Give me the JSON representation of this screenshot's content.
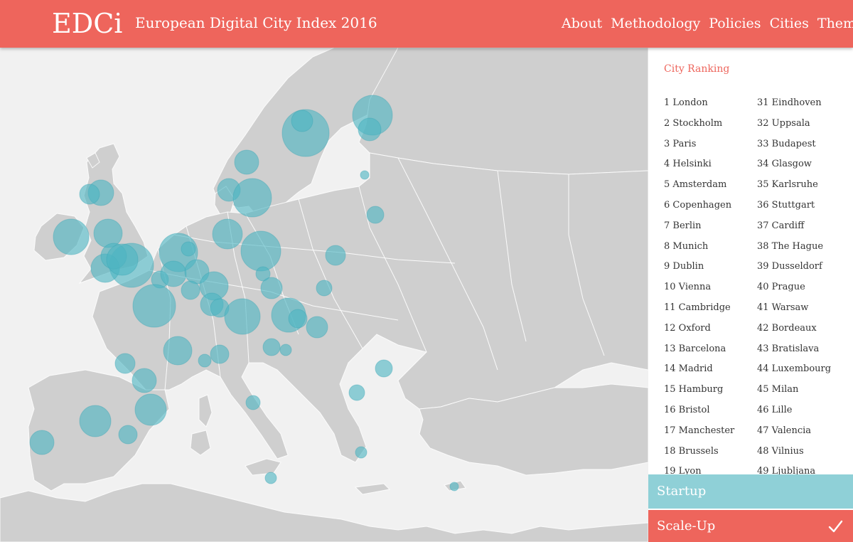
{
  "header": {
    "logo": "EDCi",
    "title": "European Digital City Index 2016",
    "nav": [
      "About",
      "Methodology",
      "Policies",
      "Cities",
      "Themes"
    ]
  },
  "panel": {
    "title": "City Ranking",
    "ranking_left": [
      "1 London",
      "2 Stockholm",
      "3 Paris",
      "4 Helsinki",
      "5 Amsterdam",
      "6 Copenhagen",
      "7 Berlin",
      "8 Munich",
      "9 Dublin",
      "10 Vienna",
      "11 Cambridge",
      "12 Oxford",
      "13 Barcelona",
      "14 Madrid",
      "15 Hamburg",
      "16 Bristol",
      "17 Manchester",
      "18 Brussels",
      "19 Lyon"
    ],
    "ranking_right": [
      "31 Eindhoven",
      "32 Uppsala",
      "33 Budapest",
      "34 Glasgow",
      "35 Karlsruhe",
      "36 Stuttgart",
      "37 Cardiff",
      "38 The Hague",
      "39 Dusseldorf",
      "40 Prague",
      "41 Warsaw",
      "42 Bordeaux",
      "43 Bratislava",
      "44 Luxembourg",
      "45 Milan",
      "46 Lille",
      "47 Valencia",
      "48 Vilnius",
      "49 Ljubljana"
    ]
  },
  "modes": {
    "startup": "Startup",
    "scaleup": "Scale-Up",
    "selected": "Scale-Up",
    "check_icon": "check-icon"
  },
  "colors": {
    "header": "#ee655c",
    "bubble": "#4db4c2",
    "land": "#cfcfcf",
    "sea": "#f1f1f1",
    "startup": "#8fd0d7"
  }
}
